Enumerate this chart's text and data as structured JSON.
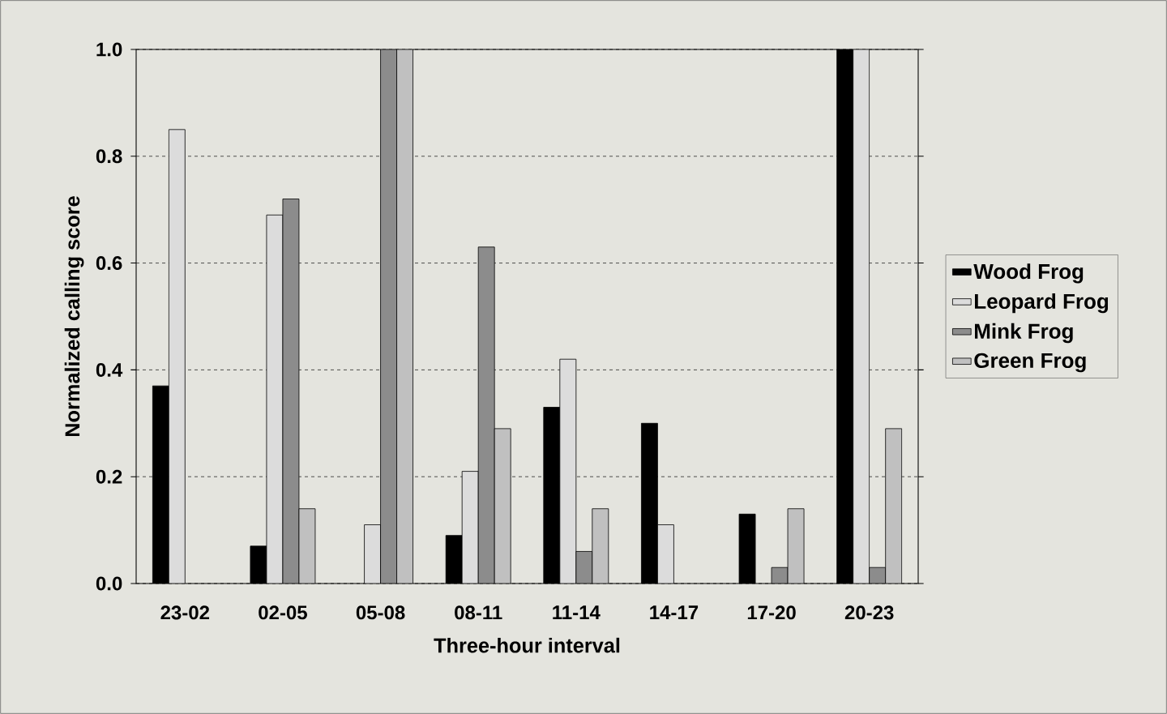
{
  "chart_data": {
    "type": "bar",
    "xlabel": "Three-hour interval",
    "ylabel": "Normalized calling score",
    "categories": [
      "23-02",
      "02-05",
      "05-08",
      "08-11",
      "11-14",
      "14-17",
      "17-20",
      "20-23"
    ],
    "series": [
      {
        "name": "Wood Frog",
        "color": "#000000",
        "values": [
          0.37,
          0.07,
          null,
          0.09,
          0.33,
          0.3,
          0.13,
          1.0
        ]
      },
      {
        "name": "Leopard Frog",
        "color": "#dcdcdc",
        "values": [
          0.85,
          0.69,
          0.11,
          0.21,
          0.42,
          0.11,
          null,
          1.0
        ]
      },
      {
        "name": "Mink Frog",
        "color": "#8c8c8c",
        "values": [
          null,
          0.72,
          1.0,
          0.63,
          0.06,
          null,
          0.03,
          0.03
        ]
      },
      {
        "name": "Green Frog",
        "color": "#c0c0c0",
        "values": [
          null,
          0.14,
          1.0,
          0.29,
          0.14,
          null,
          0.14,
          0.29
        ]
      }
    ],
    "ylim": [
      0,
      1.0
    ],
    "yticks": [
      {
        "value": 0,
        "label": "0.0"
      },
      {
        "value": 0.2,
        "label": "0.2"
      },
      {
        "value": 0.4,
        "label": "0.4"
      },
      {
        "value": 0.6,
        "label": "0.6"
      },
      {
        "value": 0.8,
        "label": "0.8"
      },
      {
        "value": 1.0,
        "label": "1.0"
      }
    ],
    "grid": "y",
    "legend": "right"
  }
}
